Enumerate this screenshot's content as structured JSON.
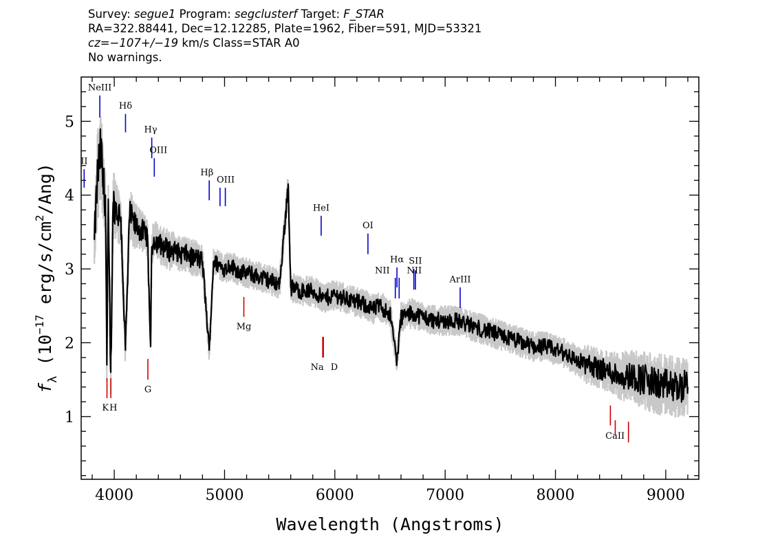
{
  "header": {
    "line1": {
      "survey_label": "Survey:",
      "survey": "segue1",
      "program_label": "Program:",
      "program": "segclusterf",
      "target_label": "Target:",
      "target": "F_STAR"
    },
    "line2": "RA=322.88441, Dec=12.12285, Plate=1962, Fiber=591, MJD=53321",
    "line3": {
      "cz": "cz=−107+/−19",
      "rest": " km/s Class=STAR A0"
    },
    "line4": "No warnings."
  },
  "chart_data": {
    "type": "line",
    "title": "",
    "xlabel": "Wavelength (Angstroms)",
    "ylabel": "f_λ (10^-17 erg/s/cm^2/Ang)",
    "ylabel_parts": {
      "f": "f",
      "sub": "λ",
      "open": " (10",
      "exp1": "−17",
      "mid": " erg/s/cm",
      "exp2": "2",
      "close": "/Ang)"
    },
    "xlim": [
      3700,
      9300
    ],
    "ylim": [
      0.15,
      5.6
    ],
    "xticks": [
      4000,
      5000,
      6000,
      7000,
      8000,
      9000
    ],
    "yticks": [
      1,
      2,
      3,
      4,
      5
    ],
    "colors": {
      "flux": "#000000",
      "error_band": "#c8c8c8",
      "emission": "#0000cc",
      "absorption": "#cc0000"
    },
    "series": [
      {
        "role": "flux",
        "x": [
          3820,
          3850,
          3880,
          3900,
          3920,
          3933,
          3945,
          3968,
          3990,
          4020,
          4060,
          4101,
          4140,
          4180,
          4220,
          4260,
          4300,
          4330,
          4340,
          4360,
          4400,
          4450,
          4500,
          4550,
          4600,
          4650,
          4700,
          4750,
          4800,
          4861,
          4900,
          4950,
          5000,
          5050,
          5100,
          5150,
          5200,
          5300,
          5400,
          5500,
          5577,
          5600,
          5700,
          5800,
          5893,
          5950,
          6000,
          6100,
          6200,
          6300,
          6350,
          6400,
          6450,
          6500,
          6563,
          6600,
          6700,
          6800,
          6900,
          7000,
          7100,
          7200,
          7300,
          7400,
          7500,
          7600,
          7700,
          7800,
          7900,
          8000,
          8100,
          8200,
          8300,
          8400,
          8500,
          8600,
          8700,
          8800,
          8900,
          9000,
          9100,
          9200
        ],
        "y": [
          3.4,
          4.3,
          4.6,
          4.1,
          4.0,
          1.7,
          3.8,
          1.6,
          3.9,
          3.8,
          3.7,
          1.9,
          3.75,
          3.6,
          3.55,
          3.5,
          3.45,
          1.95,
          3.3,
          3.4,
          3.35,
          3.3,
          3.25,
          3.25,
          3.2,
          3.2,
          3.15,
          3.15,
          3.1,
          1.9,
          3.1,
          3.05,
          3.0,
          3.05,
          3.0,
          2.95,
          2.95,
          2.9,
          2.85,
          2.8,
          4.15,
          2.75,
          2.7,
          2.7,
          2.6,
          2.62,
          2.65,
          2.6,
          2.55,
          2.5,
          2.45,
          2.5,
          2.45,
          2.4,
          1.75,
          2.35,
          2.4,
          2.35,
          2.3,
          2.3,
          2.3,
          2.25,
          2.2,
          2.15,
          2.1,
          2.05,
          2.0,
          1.95,
          1.95,
          1.9,
          1.85,
          1.75,
          1.7,
          1.65,
          1.6,
          1.55,
          1.55,
          1.5,
          1.45,
          1.42,
          1.4,
          1.4
        ],
        "spread": [
          0.3,
          0.5,
          0.5,
          0.45,
          0.4,
          0.3,
          0.4,
          0.3,
          0.35,
          0.3,
          0.3,
          0.2,
          0.25,
          0.25,
          0.22,
          0.22,
          0.2,
          0.15,
          0.2,
          0.2,
          0.2,
          0.2,
          0.2,
          0.18,
          0.18,
          0.18,
          0.18,
          0.18,
          0.18,
          0.12,
          0.15,
          0.15,
          0.15,
          0.15,
          0.15,
          0.15,
          0.15,
          0.15,
          0.15,
          0.15,
          0.15,
          0.15,
          0.15,
          0.15,
          0.15,
          0.15,
          0.15,
          0.15,
          0.15,
          0.15,
          0.15,
          0.15,
          0.15,
          0.15,
          0.12,
          0.15,
          0.15,
          0.15,
          0.15,
          0.15,
          0.15,
          0.15,
          0.15,
          0.15,
          0.15,
          0.15,
          0.15,
          0.15,
          0.15,
          0.15,
          0.15,
          0.15,
          0.2,
          0.2,
          0.2,
          0.25,
          0.25,
          0.3,
          0.3,
          0.3,
          0.3,
          0.3
        ]
      }
    ],
    "emission_lines": [
      {
        "label": "NeIII",
        "x": 3869,
        "y0": 5.05,
        "y1": 5.35,
        "lx": 3869,
        "ly": 5.42
      },
      {
        "label": "II",
        "x": 3727,
        "y0": 4.1,
        "y1": 4.35,
        "lx": 3727,
        "ly": 4.42
      },
      {
        "label": "Hδ",
        "x": 4102,
        "y0": 4.85,
        "y1": 5.1,
        "lx": 4102,
        "ly": 5.17
      },
      {
        "label": "Hγ",
        "x": 4340,
        "y0": 4.5,
        "y1": 4.78,
        "lx": 4330,
        "ly": 4.85
      },
      {
        "label": "OIII",
        "x": 4363,
        "y0": 4.25,
        "y1": 4.5,
        "lx": 4400,
        "ly": 4.57
      },
      {
        "label": "Hβ",
        "x": 4861,
        "y0": 3.93,
        "y1": 4.2,
        "lx": 4840,
        "ly": 4.27
      },
      {
        "label": "OIII",
        "x": 4959,
        "y0": 3.85,
        "y1": 4.1,
        "lx": 5010,
        "ly": 4.17
      },
      {
        "label": "",
        "x": 5007,
        "y0": 3.85,
        "y1": 4.1,
        "lx": 5007,
        "ly": 4.17
      },
      {
        "label": "HeI",
        "x": 5876,
        "y0": 3.45,
        "y1": 3.72,
        "lx": 5876,
        "ly": 3.79
      },
      {
        "label": "OI",
        "x": 6300,
        "y0": 3.2,
        "y1": 3.48,
        "lx": 6300,
        "ly": 3.55
      },
      {
        "label": "NII",
        "x": 6548,
        "y0": 2.6,
        "y1": 2.88,
        "lx": 6430,
        "ly": 2.94
      },
      {
        "label": "Hα",
        "x": 6563,
        "y0": 2.75,
        "y1": 3.02,
        "lx": 6563,
        "ly": 3.09
      },
      {
        "label": "",
        "x": 6583,
        "y0": 2.6,
        "y1": 2.88,
        "lx": 6583,
        "ly": 2.94
      },
      {
        "label": "SII",
        "x": 6716,
        "y0": 2.72,
        "y1": 3.0,
        "lx": 6730,
        "ly": 3.07
      },
      {
        "label": "NII",
        "x": 6730,
        "y0": 2.72,
        "y1": 2.98,
        "lx": 6720,
        "ly": 2.94
      },
      {
        "label": "ArIII",
        "x": 7136,
        "y0": 2.47,
        "y1": 2.75,
        "lx": 7136,
        "ly": 2.82
      }
    ],
    "absorption_lines": [
      {
        "label": "K",
        "x": 3934,
        "y0": 1.25,
        "y1": 1.52,
        "lx": 3920,
        "ly": 1.08
      },
      {
        "label": "H",
        "x": 3969,
        "y0": 1.25,
        "y1": 1.52,
        "lx": 3992,
        "ly": 1.08
      },
      {
        "label": "G",
        "x": 4305,
        "y0": 1.5,
        "y1": 1.78,
        "lx": 4305,
        "ly": 1.33
      },
      {
        "label": "Mg",
        "x": 5175,
        "y0": 2.35,
        "y1": 2.62,
        "lx": 5175,
        "ly": 2.18
      },
      {
        "label": "Na",
        "x": 5890,
        "y0": 1.8,
        "y1": 2.08,
        "lx": 5840,
        "ly": 1.63
      },
      {
        "label": "D",
        "x": 5896,
        "y0": 1.8,
        "y1": 2.08,
        "lx": 5995,
        "ly": 1.63
      },
      {
        "label": "CaII",
        "x": 8498,
        "y0": 0.88,
        "y1": 1.15,
        "lx": 8540,
        "ly": 0.7
      },
      {
        "label": "",
        "x": 8542,
        "y0": 0.75,
        "y1": 0.95,
        "lx": 8542,
        "ly": 0.7
      },
      {
        "label": "",
        "x": 8662,
        "y0": 0.65,
        "y1": 0.93,
        "lx": 8662,
        "ly": 0.7
      }
    ]
  }
}
